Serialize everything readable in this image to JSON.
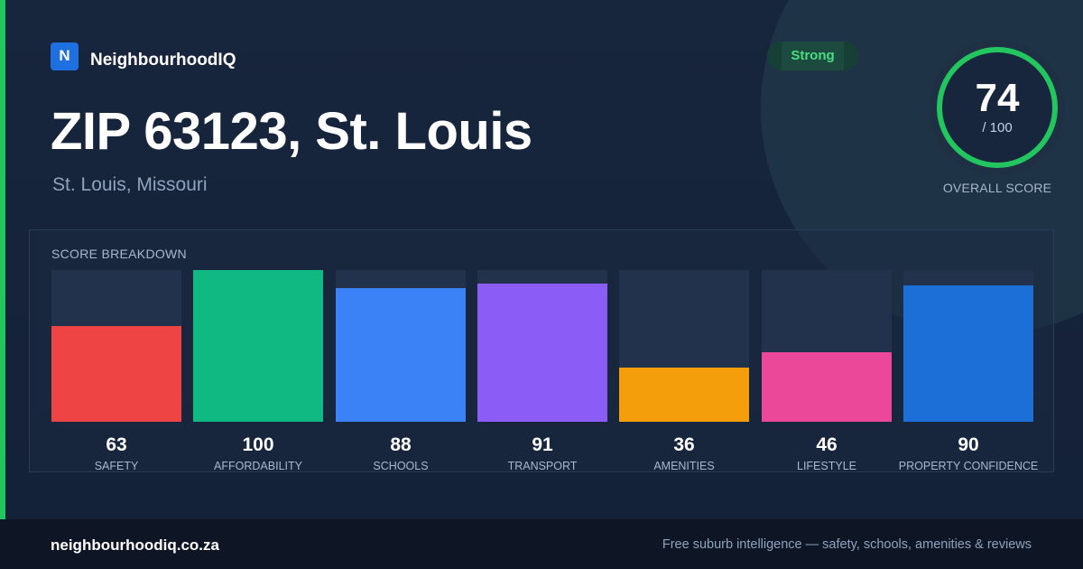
{
  "brand": {
    "logo_letter": "N",
    "name": "NeighbourhoodIQ"
  },
  "header": {
    "title": "ZIP 63123, St. Louis",
    "subtitle": "St. Louis, Missouri",
    "badge": "Strong"
  },
  "overall_score": {
    "value": "74",
    "max_label": "/ 100",
    "label": "OVERALL SCORE",
    "fraction": 0.74
  },
  "breakdown": {
    "title": "SCORE BREAKDOWN",
    "max": 100,
    "items": [
      {
        "label": "SAFETY",
        "value": 63,
        "color": "#ef4444"
      },
      {
        "label": "AFFORDABILITY",
        "value": 100,
        "color": "#10b981"
      },
      {
        "label": "SCHOOLS",
        "value": 88,
        "color": "#3b82f6"
      },
      {
        "label": "TRANSPORT",
        "value": 91,
        "color": "#8b5cf6"
      },
      {
        "label": "AMENITIES",
        "value": 36,
        "color": "#f59e0b"
      },
      {
        "label": "LIFESTYLE",
        "value": 46,
        "color": "#ec4899"
      },
      {
        "label": "PROPERTY CONFIDENCE",
        "value": 90,
        "color": "#1d6fd8"
      }
    ]
  },
  "colors": {
    "accent": "#22c55e",
    "background": "#152238",
    "ring": "#22c55e",
    "ring_track": "#1f2f44"
  },
  "footer": {
    "domain": "neighbourhoodiq.co.za",
    "tagline": "Free suburb intelligence — safety, schools, amenities & reviews"
  }
}
